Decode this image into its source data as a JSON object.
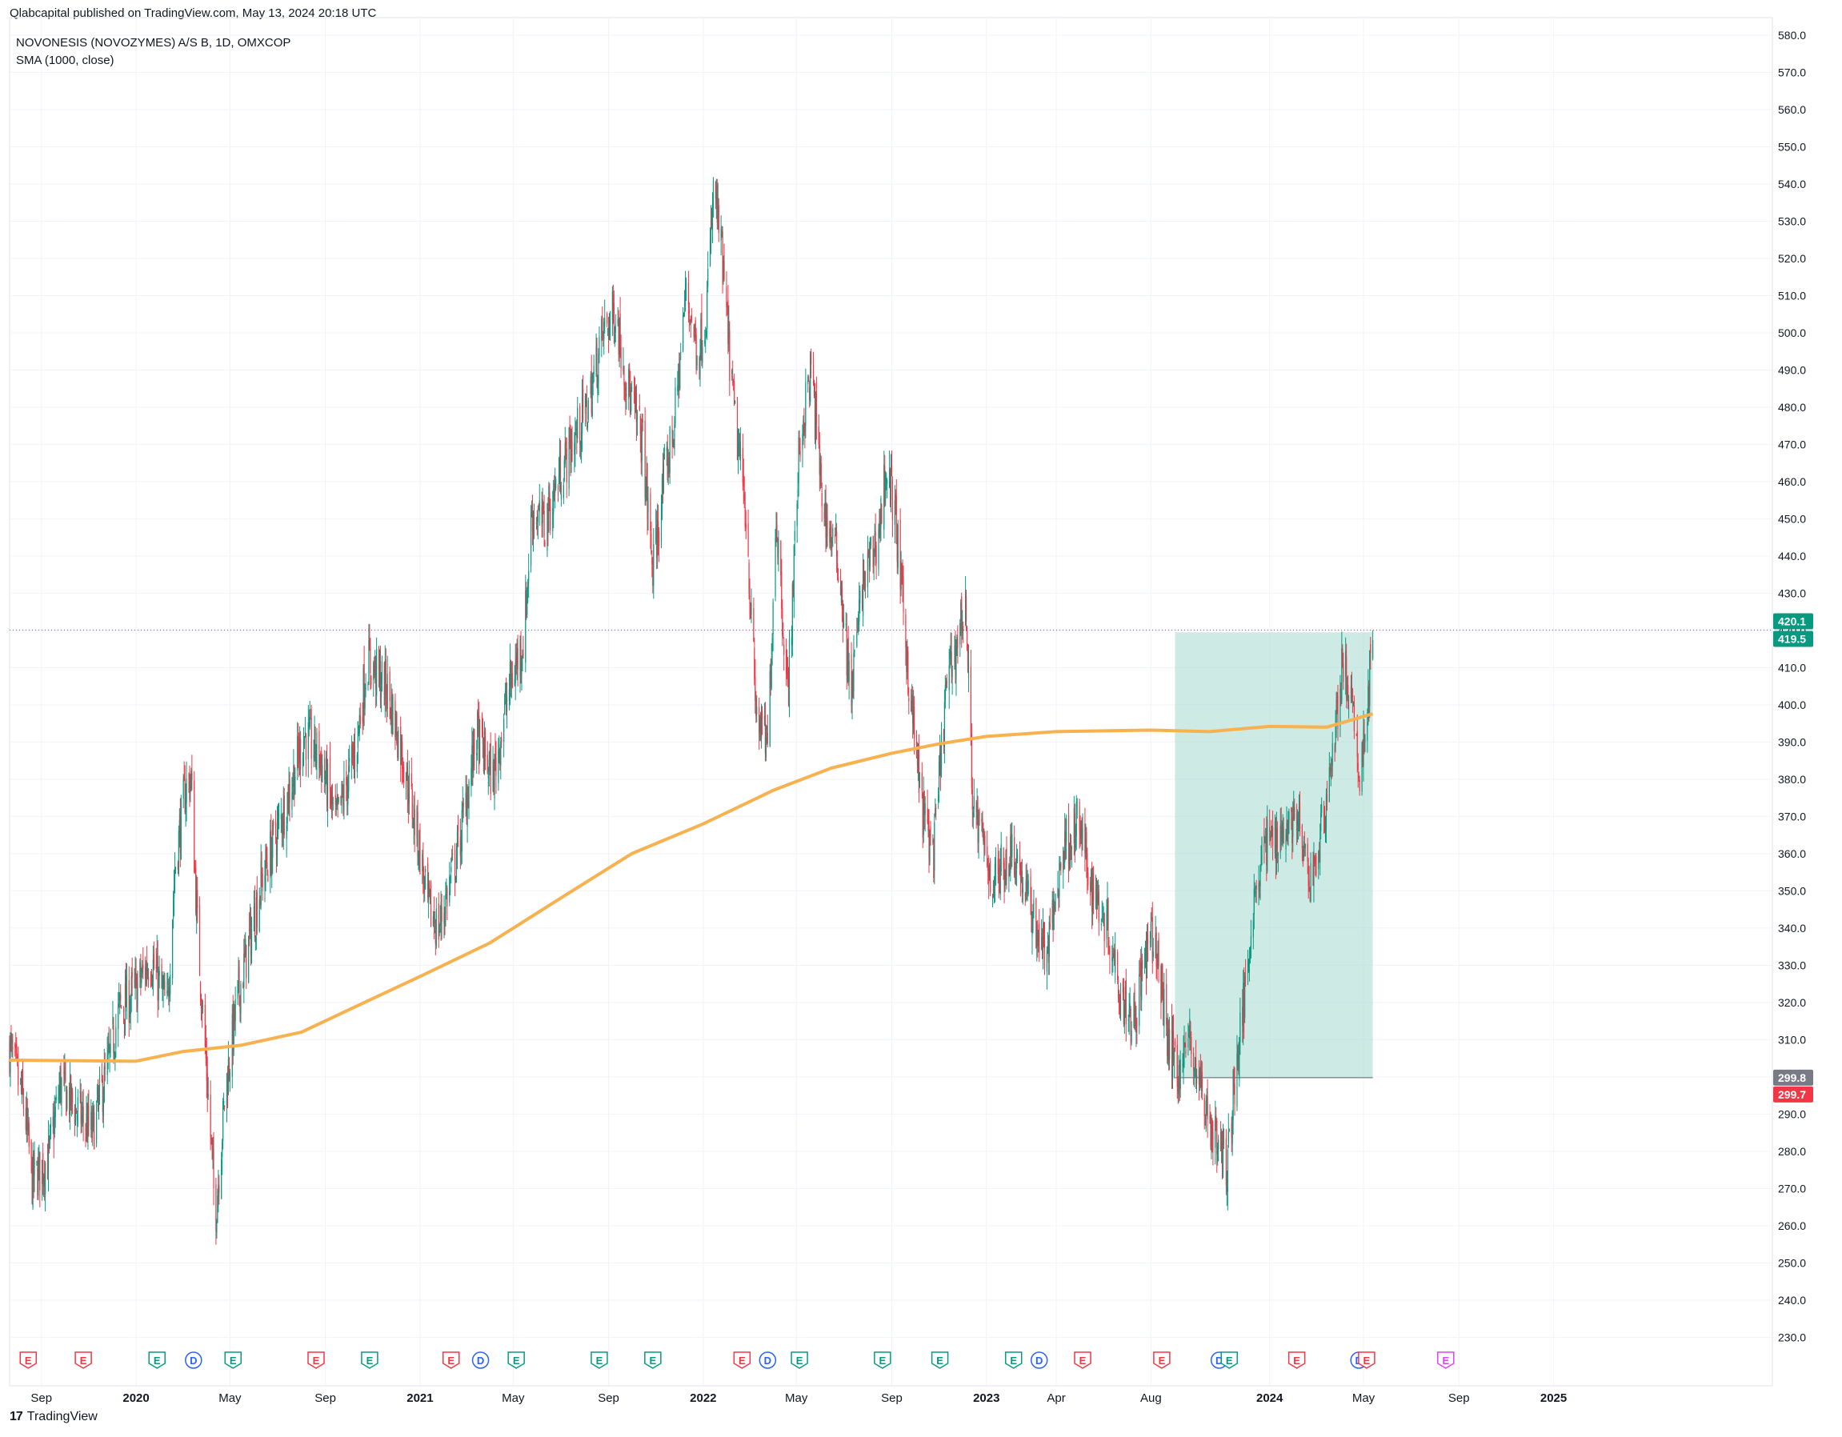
{
  "header": {
    "published_line": "Qlabcapital published on TradingView.com, May 13, 2024 20:18 UTC"
  },
  "footer": {
    "brand": "TradingView",
    "logo_glyph": "17"
  },
  "colors": {
    "up": "#089981",
    "down": "#f23645",
    "sma": "#f7b14f",
    "box_fill": "#b2dfd6",
    "grid": "#f0f3fa",
    "axis_text": "#131722",
    "last_price_tag": "#089981",
    "box_low_tag": "#787b86",
    "red_tag": "#f23645",
    "earnings_color": "#f23645",
    "earnings_green": "#089981",
    "dividend_color": "#2962ff",
    "split_color": "#e040fb"
  },
  "chart_data": {
    "type": "candlestick",
    "title": "NOVONESIS (NOVOZYMES) A/S B, 1D, OMXCOP",
    "indicator_label": "SMA (1000, close)",
    "ylim": [
      226,
      583
    ],
    "y_ticks": [
      "230.0",
      "240.0",
      "250.0",
      "260.0",
      "270.0",
      "280.0",
      "290.0",
      "300.0",
      "310.0",
      "320.0",
      "330.0",
      "340.0",
      "350.0",
      "360.0",
      "370.0",
      "380.0",
      "390.0",
      "400.0",
      "410.0",
      "420.0",
      "430.0",
      "440.0",
      "450.0",
      "460.0",
      "470.0",
      "480.0",
      "490.0",
      "500.0",
      "510.0",
      "520.0",
      "530.0",
      "540.0",
      "550.0",
      "560.0",
      "570.0",
      "580.0"
    ],
    "x_range": [
      "2019-07-22",
      "2025-10-10"
    ],
    "x_ticks": [
      {
        "label": "Sep",
        "date": "2019-09-01",
        "bold": false
      },
      {
        "label": "2020",
        "date": "2020-01-01",
        "bold": true
      },
      {
        "label": "May",
        "date": "2020-05-01",
        "bold": false
      },
      {
        "label": "Sep",
        "date": "2020-09-01",
        "bold": false
      },
      {
        "label": "2021",
        "date": "2021-01-01",
        "bold": true
      },
      {
        "label": "May",
        "date": "2021-05-01",
        "bold": false
      },
      {
        "label": "Sep",
        "date": "2021-09-01",
        "bold": false
      },
      {
        "label": "2022",
        "date": "2022-01-01",
        "bold": true
      },
      {
        "label": "May",
        "date": "2022-05-01",
        "bold": false
      },
      {
        "label": "Sep",
        "date": "2022-09-01",
        "bold": false
      },
      {
        "label": "2023",
        "date": "2023-01-01",
        "bold": true
      },
      {
        "label": "Apr",
        "date": "2023-04-01",
        "bold": false
      },
      {
        "label": "Aug",
        "date": "2023-08-01",
        "bold": false
      },
      {
        "label": "2024",
        "date": "2024-01-01",
        "bold": true
      },
      {
        "label": "May",
        "date": "2024-05-01",
        "bold": false
      },
      {
        "label": "Sep",
        "date": "2024-09-01",
        "bold": false
      },
      {
        "label": "2025",
        "date": "2025-01-01",
        "bold": true
      }
    ],
    "price_path": [
      [
        "2019-07-22",
        308
      ],
      [
        "2019-08-10",
        292
      ],
      [
        "2019-08-20",
        272
      ],
      [
        "2019-09-10",
        278
      ],
      [
        "2019-09-25",
        298
      ],
      [
        "2019-10-20",
        290
      ],
      [
        "2019-11-05",
        285
      ],
      [
        "2019-11-25",
        302
      ],
      [
        "2019-12-10",
        318
      ],
      [
        "2019-12-31",
        323
      ],
      [
        "2020-01-20",
        332
      ],
      [
        "2020-02-10",
        318
      ],
      [
        "2020-02-20",
        356
      ],
      [
        "2020-03-05",
        378
      ],
      [
        "2020-03-12",
        380
      ],
      [
        "2020-03-20",
        340
      ],
      [
        "2020-04-05",
        288
      ],
      [
        "2020-04-12",
        262
      ],
      [
        "2020-04-25",
        296
      ],
      [
        "2020-05-10",
        320
      ],
      [
        "2020-06-10",
        352
      ],
      [
        "2020-07-10",
        372
      ],
      [
        "2020-08-05",
        392
      ],
      [
        "2020-08-25",
        386
      ],
      [
        "2020-09-15",
        368
      ],
      [
        "2020-10-10",
        388
      ],
      [
        "2020-10-25",
        412
      ],
      [
        "2020-11-20",
        404
      ],
      [
        "2020-12-10",
        386
      ],
      [
        "2020-12-31",
        362
      ],
      [
        "2021-01-10",
        346
      ],
      [
        "2021-01-25",
        340
      ],
      [
        "2021-02-20",
        362
      ],
      [
        "2021-03-15",
        392
      ],
      [
        "2021-04-05",
        380
      ],
      [
        "2021-04-25",
        404
      ],
      [
        "2021-05-15",
        418
      ],
      [
        "2021-05-25",
        452
      ],
      [
        "2021-06-10",
        448
      ],
      [
        "2021-06-30",
        462
      ],
      [
        "2021-07-20",
        472
      ],
      [
        "2021-08-05",
        480
      ],
      [
        "2021-08-25",
        500
      ],
      [
        "2021-09-10",
        506
      ],
      [
        "2021-09-25",
        486
      ],
      [
        "2021-10-15",
        470
      ],
      [
        "2021-10-28",
        436
      ],
      [
        "2021-11-10",
        458
      ],
      [
        "2021-11-25",
        476
      ],
      [
        "2021-12-10",
        512
      ],
      [
        "2021-12-25",
        494
      ],
      [
        "2022-01-05",
        506
      ],
      [
        "2022-01-15",
        540
      ],
      [
        "2022-01-25",
        520
      ],
      [
        "2022-02-10",
        478
      ],
      [
        "2022-02-25",
        452
      ],
      [
        "2022-03-10",
        398
      ],
      [
        "2022-03-25",
        388
      ],
      [
        "2022-04-05",
        452
      ],
      [
        "2022-04-20",
        402
      ],
      [
        "2022-05-05",
        470
      ],
      [
        "2022-05-20",
        490
      ],
      [
        "2022-06-05",
        452
      ],
      [
        "2022-06-25",
        438
      ],
      [
        "2022-07-10",
        402
      ],
      [
        "2022-07-25",
        432
      ],
      [
        "2022-08-15",
        446
      ],
      [
        "2022-08-25",
        464
      ],
      [
        "2022-09-05",
        452
      ],
      [
        "2022-09-25",
        402
      ],
      [
        "2022-10-10",
        372
      ],
      [
        "2022-10-25",
        360
      ],
      [
        "2022-11-10",
        404
      ],
      [
        "2022-11-25",
        418
      ],
      [
        "2022-12-05",
        428
      ],
      [
        "2022-12-15",
        372
      ],
      [
        "2023-01-10",
        352
      ],
      [
        "2023-02-05",
        362
      ],
      [
        "2023-02-25",
        346
      ],
      [
        "2023-03-20",
        332
      ],
      [
        "2023-04-10",
        362
      ],
      [
        "2023-04-30",
        368
      ],
      [
        "2023-05-15",
        352
      ],
      [
        "2023-06-05",
        342
      ],
      [
        "2023-06-25",
        322
      ],
      [
        "2023-07-10",
        316
      ],
      [
        "2023-07-25",
        332
      ],
      [
        "2023-08-05",
        338
      ],
      [
        "2023-08-25",
        308
      ],
      [
        "2023-09-05",
        302
      ],
      [
        "2023-09-20",
        310
      ],
      [
        "2023-10-05",
        296
      ],
      [
        "2023-10-25",
        282
      ],
      [
        "2023-11-08",
        276
      ],
      [
        "2023-11-15",
        296
      ],
      [
        "2023-11-25",
        312
      ],
      [
        "2023-12-10",
        346
      ],
      [
        "2023-12-25",
        362
      ],
      [
        "2024-01-15",
        366
      ],
      [
        "2024-02-05",
        370
      ],
      [
        "2024-02-20",
        352
      ],
      [
        "2024-03-05",
        362
      ],
      [
        "2024-03-25",
        392
      ],
      [
        "2024-04-05",
        412
      ],
      [
        "2024-04-15",
        400
      ],
      [
        "2024-04-25",
        382
      ],
      [
        "2024-05-03",
        392
      ],
      [
        "2024-05-10",
        412
      ],
      [
        "2024-05-13",
        420.1
      ]
    ],
    "sma_path": [
      [
        "2019-07-22",
        304.5
      ],
      [
        "2019-12-31",
        304.2
      ],
      [
        "2020-03-01",
        306.8
      ],
      [
        "2020-05-15",
        308.5
      ],
      [
        "2020-08-01",
        312
      ],
      [
        "2020-10-01",
        318
      ],
      [
        "2021-01-01",
        327
      ],
      [
        "2021-04-01",
        336
      ],
      [
        "2021-07-01",
        348
      ],
      [
        "2021-10-01",
        360
      ],
      [
        "2022-01-01",
        368
      ],
      [
        "2022-04-01",
        377
      ],
      [
        "2022-06-15",
        383
      ],
      [
        "2022-09-01",
        387
      ],
      [
        "2022-11-01",
        389.5
      ],
      [
        "2023-01-01",
        391.5
      ],
      [
        "2023-04-01",
        392.8
      ],
      [
        "2023-08-01",
        393.2
      ],
      [
        "2023-10-15",
        392.8
      ],
      [
        "2024-01-01",
        394.2
      ],
      [
        "2024-03-15",
        394.0
      ],
      [
        "2024-05-13",
        397.6
      ]
    ],
    "current_price": 420.1,
    "current_price_labels": [
      "420.1",
      "419.5"
    ],
    "range_box": {
      "start": "2023-09-01",
      "end": "2024-05-13",
      "low": 299.8,
      "high": 419.5
    },
    "box_low_labels": [
      "299.8",
      "299.7"
    ],
    "events": [
      {
        "type": "E",
        "date": "2019-08-15",
        "color": "red"
      },
      {
        "type": "E",
        "date": "2019-10-25",
        "color": "red"
      },
      {
        "type": "E",
        "date": "2020-01-28",
        "color": "green"
      },
      {
        "type": "D",
        "date": "2020-03-15",
        "color": "blue"
      },
      {
        "type": "E",
        "date": "2020-05-05",
        "color": "green"
      },
      {
        "type": "E",
        "date": "2020-08-20",
        "color": "red"
      },
      {
        "type": "E",
        "date": "2020-10-28",
        "color": "green"
      },
      {
        "type": "E",
        "date": "2021-02-10",
        "color": "red"
      },
      {
        "type": "D",
        "date": "2021-03-20",
        "color": "blue"
      },
      {
        "type": "E",
        "date": "2021-05-05",
        "color": "green"
      },
      {
        "type": "E",
        "date": "2021-08-20",
        "color": "green"
      },
      {
        "type": "E",
        "date": "2021-10-28",
        "color": "green"
      },
      {
        "type": "E",
        "date": "2022-02-20",
        "color": "red"
      },
      {
        "type": "D",
        "date": "2022-03-25",
        "color": "blue"
      },
      {
        "type": "E",
        "date": "2022-05-05",
        "color": "green"
      },
      {
        "type": "E",
        "date": "2022-08-20",
        "color": "green"
      },
      {
        "type": "E",
        "date": "2022-11-02",
        "color": "green"
      },
      {
        "type": "E",
        "date": "2023-02-05",
        "color": "green"
      },
      {
        "type": "D",
        "date": "2023-03-10",
        "color": "blue"
      },
      {
        "type": "E",
        "date": "2023-05-05",
        "color": "red"
      },
      {
        "type": "E",
        "date": "2023-08-15",
        "color": "red"
      },
      {
        "type": "D",
        "date": "2023-10-28",
        "color": "blue"
      },
      {
        "type": "E",
        "date": "2023-11-10",
        "color": "green"
      },
      {
        "type": "E",
        "date": "2024-02-05",
        "color": "red"
      },
      {
        "type": "D",
        "date": "2024-04-25",
        "color": "blue"
      },
      {
        "type": "E",
        "date": "2024-05-05",
        "color": "red"
      },
      {
        "type": "E",
        "date": "2024-08-15",
        "color": "magenta"
      }
    ]
  }
}
